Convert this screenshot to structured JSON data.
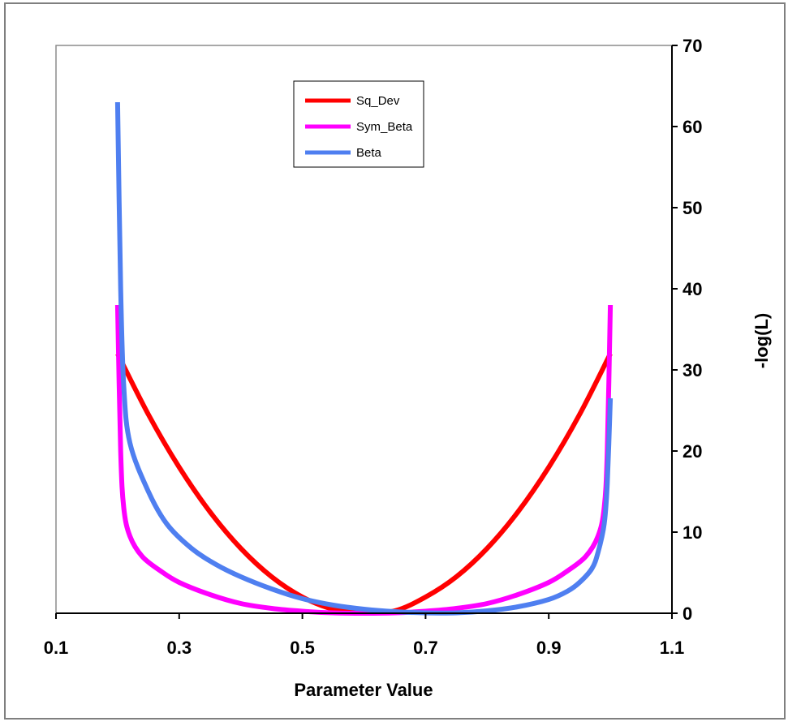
{
  "chart_data": {
    "type": "line",
    "title": "",
    "xlabel": "Parameter Value",
    "ylabel": "-log(L)",
    "xlim": [
      0.1,
      1.1
    ],
    "ylim": [
      0,
      70
    ],
    "xticks": [
      0.1,
      0.3,
      0.5,
      0.7,
      0.9,
      1.1
    ],
    "xtick_labels": [
      "0.1",
      "0.3",
      "0.5",
      "0.7",
      "0.9",
      "1.1"
    ],
    "yticks": [
      0,
      10,
      20,
      30,
      40,
      50,
      60,
      70
    ],
    "ytick_labels": [
      "0",
      "10",
      "20",
      "30",
      "40",
      "50",
      "60",
      "70"
    ],
    "y_axis_side": "right",
    "grid": false,
    "legend_placement": "top-center",
    "series": [
      {
        "name": "Sq_Dev",
        "color": "#ff0000",
        "x": [
          0.2,
          0.25,
          0.3,
          0.35,
          0.4,
          0.45,
          0.5,
          0.55,
          0.6,
          0.65,
          0.7,
          0.75,
          0.8,
          0.85,
          0.9,
          0.95,
          1.0
        ],
        "y": [
          32.0,
          24.5,
          18.0,
          12.5,
          8.0,
          4.5,
          2.0,
          0.5,
          0.1,
          0.3,
          2.0,
          4.5,
          8.0,
          12.5,
          18.0,
          24.5,
          32.0
        ]
      },
      {
        "name": "Sym_Beta",
        "color": "#ff00ff",
        "x": [
          0.2,
          0.205,
          0.21,
          0.22,
          0.24,
          0.27,
          0.3,
          0.35,
          0.4,
          0.45,
          0.5,
          0.55,
          0.6,
          0.65,
          0.7,
          0.75,
          0.8,
          0.85,
          0.9,
          0.93,
          0.96,
          0.98,
          0.99,
          0.995,
          1.0
        ],
        "y": [
          38.0,
          20.0,
          13.0,
          9.5,
          7.0,
          5.2,
          3.8,
          2.3,
          1.2,
          0.6,
          0.25,
          0.05,
          0.0,
          0.05,
          0.25,
          0.6,
          1.2,
          2.3,
          3.8,
          5.2,
          7.0,
          9.5,
          13.0,
          20.0,
          38.0
        ]
      },
      {
        "name": "Beta",
        "color": "#4f7ff0",
        "x": [
          0.2,
          0.205,
          0.21,
          0.22,
          0.25,
          0.28,
          0.32,
          0.36,
          0.4,
          0.45,
          0.5,
          0.55,
          0.6,
          0.65,
          0.7,
          0.75,
          0.8,
          0.85,
          0.9,
          0.93,
          0.95,
          0.97,
          0.98,
          0.99,
          0.995,
          1.0
        ],
        "y": [
          63.0,
          40.0,
          28.0,
          21.0,
          15.0,
          11.0,
          8.0,
          6.0,
          4.5,
          3.0,
          1.8,
          1.0,
          0.5,
          0.2,
          0.05,
          0.05,
          0.3,
          0.8,
          1.7,
          2.7,
          3.8,
          5.5,
          7.5,
          11.0,
          16.0,
          26.5
        ]
      }
    ]
  }
}
